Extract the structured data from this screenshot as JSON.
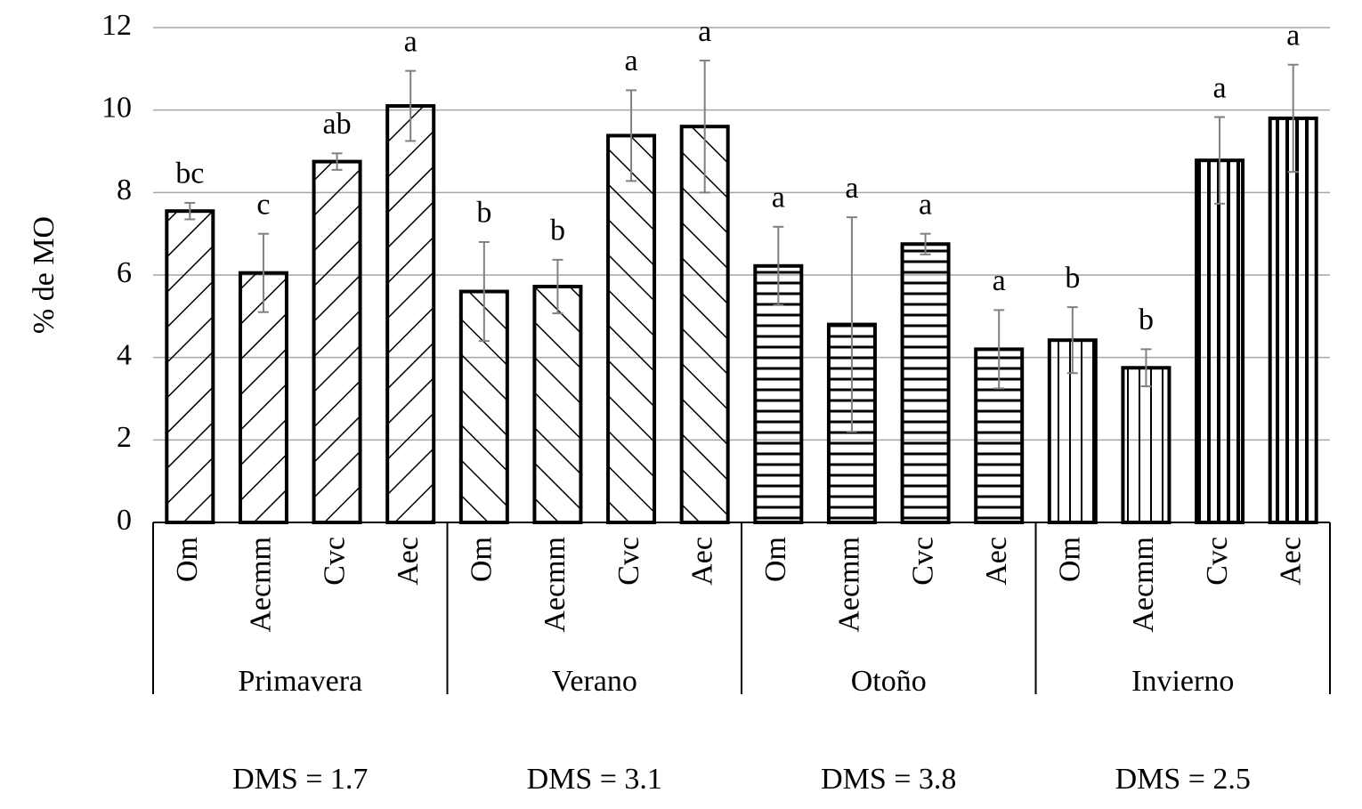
{
  "chart_data": {
    "type": "bar",
    "y_label": "% de MO",
    "categories": [
      "Om",
      "Aecmm",
      "Cvc",
      "Aec"
    ],
    "groups": [
      {
        "name": "Primavera",
        "note": "DMS = 1.7",
        "values": [
          7.55,
          6.05,
          8.75,
          10.1
        ],
        "errors": [
          0.2,
          0.95,
          0.2,
          0.85
        ],
        "letters": [
          "bc",
          "c",
          "ab",
          "a"
        ],
        "patterns": [
          "diag-down",
          "diag-down",
          "diag-down",
          "diag-down"
        ]
      },
      {
        "name": "Verano",
        "note": "DMS = 3.1",
        "values": [
          5.6,
          5.72,
          9.38,
          9.6
        ],
        "errors": [
          1.2,
          0.65,
          1.1,
          1.6
        ],
        "letters": [
          "b",
          "b",
          "a",
          "a"
        ],
        "patterns": [
          "diag-up",
          "diag-up",
          "diag-up",
          "diag-up"
        ]
      },
      {
        "name": "Otoño",
        "note": "DMS = 3.8",
        "values": [
          6.22,
          4.8,
          6.75,
          4.2
        ],
        "errors": [
          0.95,
          2.6,
          0.25,
          0.95
        ],
        "letters": [
          "a",
          "a",
          "a",
          "a"
        ],
        "patterns": [
          "horizontal",
          "horizontal",
          "horizontal",
          "horizontal"
        ]
      },
      {
        "name": "Invierno",
        "note": "DMS = 2.5",
        "values": [
          4.42,
          3.75,
          8.78,
          9.8
        ],
        "errors": [
          0.8,
          0.45,
          1.05,
          1.3
        ],
        "letters": [
          "b",
          "b",
          "a",
          "a"
        ],
        "patterns": [
          "vertical",
          "vertical",
          "vertical-bold",
          "vertical-bold"
        ]
      }
    ],
    "ylim": [
      0,
      12
    ],
    "yticks": [
      0,
      2,
      4,
      6,
      8,
      10,
      12
    ],
    "grid": true,
    "color": "#000000",
    "error_color": "#808080",
    "grid_color": "#a6a6a6"
  }
}
